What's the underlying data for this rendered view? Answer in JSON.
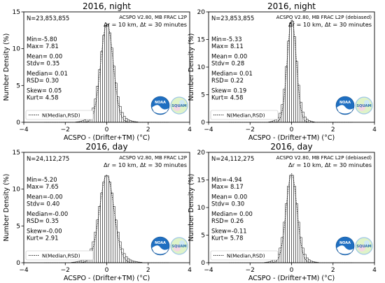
{
  "chart_data": [
    {
      "type": "bar",
      "title": "2016, night",
      "xlabel": "ACSPO - (Drifter+TM) (°C)",
      "ylabel": "Number Density (%)",
      "xlim": [
        -4,
        4
      ],
      "ylim": [
        0,
        15
      ],
      "xticks": [
        "−4",
        "−2",
        "0",
        "2",
        "4"
      ],
      "yticks": [
        "0",
        "5",
        "10",
        "15"
      ],
      "n_text": "N=23,853,855",
      "header": "ACSPO V2.80, MB FRAC L2P",
      "resolution": "Δr = 10 km, Δt = 30 minutes",
      "stats": [
        "Min=-5.80",
        "Max= 7.81",
        "Mean= 0.00",
        "Stdv= 0.35",
        "Median= 0.01",
        "RSD= 0.30",
        "Skew= 0.05",
        "Kurt= 4.58"
      ],
      "legend": "N(Median,RSD)",
      "logos": [
        "NOAA",
        "SQUAM"
      ],
      "dist": {
        "median": 0.01,
        "rsd": 0.3,
        "peak": 13.4
      },
      "grid": false,
      "legend_position": "lower-left"
    },
    {
      "type": "bar",
      "title": "2016, night",
      "xlabel": "ACSPO - (Drifter+TM) (°C)",
      "ylabel": "Number Density (%)",
      "xlim": [
        -4,
        4
      ],
      "ylim": [
        0,
        20
      ],
      "xticks": [
        "−4",
        "−2",
        "0",
        "2",
        "4"
      ],
      "yticks": [
        "0",
        "5",
        "10",
        "15",
        "20"
      ],
      "n_text": "N=23,853,855",
      "header": "ACSPO V2.80, MB FRAC L2P (debiased)",
      "resolution": "Δr = 10 km, Δt = 30 minutes",
      "stats": [
        "Min=-5.33",
        "Max= 8.11",
        "Mean= 0.00",
        "Stdv= 0.28",
        "Median= 0.01",
        "RSD= 0.22",
        "Skew= 0.19",
        "Kurt= 4.58"
      ],
      "legend": "N(Median,RSD)",
      "logos": [
        "NOAA",
        "SQUAM"
      ],
      "dist": {
        "median": 0.01,
        "rsd": 0.22,
        "peak": 18.6
      },
      "grid": false,
      "legend_position": "lower-left"
    },
    {
      "type": "bar",
      "title": "2016, day",
      "xlabel": "ACSPO - (Drifter+TM) (°C)",
      "ylabel": "Number Density (%)",
      "xlim": [
        -4,
        4
      ],
      "ylim": [
        0,
        15
      ],
      "xticks": [
        "−4",
        "−2",
        "0",
        "2",
        "4"
      ],
      "yticks": [
        "0",
        "5",
        "10",
        "15"
      ],
      "n_text": "N=24,112,275",
      "header": "ACSPO V2.80, MB FRAC L2P",
      "resolution": "Δr = 10 km, Δt = 30 minutes",
      "stats": [
        "Min=-5.20",
        "Max= 7.65",
        "Mean=-0.00",
        "Stdv= 0.40",
        "Median=-0.00",
        "RSD= 0.35",
        "Skew=-0.00",
        "Kurt= 2.91"
      ],
      "legend": "N(Median,RSD)",
      "logos": [
        "NOAA",
        "SQUAM"
      ],
      "dist": {
        "median": 0.0,
        "rsd": 0.35,
        "peak": 11.9
      },
      "grid": false,
      "legend_position": "lower-left"
    },
    {
      "type": "bar",
      "title": "2016, day",
      "xlabel": "ACSPO - (Drifter+TM) (°C)",
      "ylabel": "Number Density (%)",
      "xlim": [
        -4,
        4
      ],
      "ylim": [
        0,
        20
      ],
      "xticks": [
        "−4",
        "−2",
        "0",
        "2",
        "4"
      ],
      "yticks": [
        "0",
        "5",
        "10",
        "15",
        "20"
      ],
      "n_text": "N=24,112,275",
      "header": "ACSPO V2.80, MB FRAC L2P (debiased)",
      "resolution": "Δr = 10 km, Δt = 30 minutes",
      "stats": [
        "Min=-4.94",
        "Max= 8.17",
        "Mean= 0.00",
        "Stdv= 0.30",
        "Median= 0.00",
        "RSD= 0.26",
        "Skew=-0.11",
        "Kurt= 5.78"
      ],
      "legend": "N(Median,RSD)",
      "logos": [
        "NOAA",
        "SQUAM"
      ],
      "dist": {
        "median": 0.0,
        "rsd": 0.26,
        "peak": 16.1
      },
      "grid": false,
      "legend_position": "lower-left"
    }
  ]
}
